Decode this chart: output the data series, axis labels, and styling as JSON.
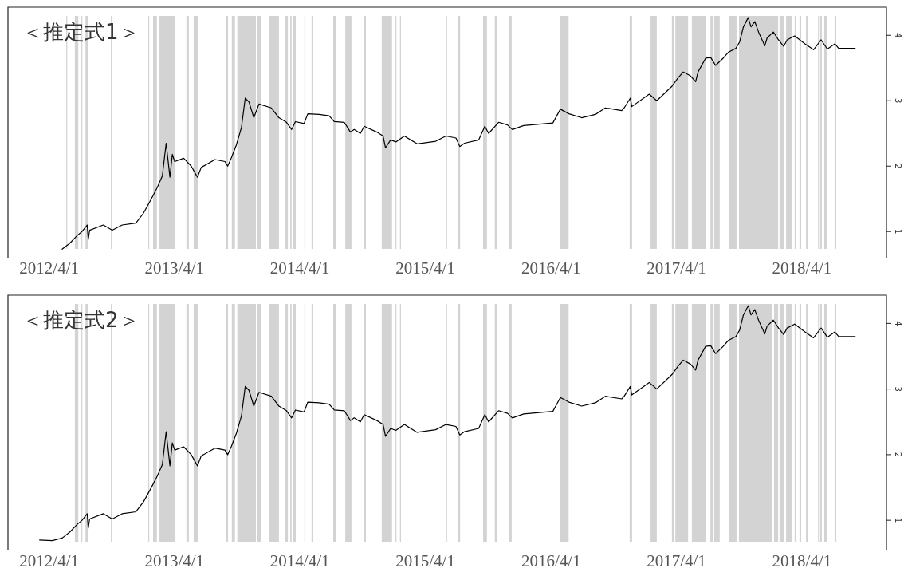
{
  "chart_data": [
    {
      "type": "line",
      "title": "＜推定式1＞",
      "xlim": [
        "2011-12-03",
        "2018-12-03"
      ],
      "xticks": [
        {
          "value": "2012-04-01",
          "label": "2012/4/1"
        },
        {
          "value": "2013-04-01",
          "label": "2013/4/1"
        },
        {
          "value": "2014-04-01",
          "label": "2014/4/1"
        },
        {
          "value": "2015-04-01",
          "label": "2015/4/1"
        },
        {
          "value": "2016-04-01",
          "label": "2016/4/1"
        },
        {
          "value": "2017-04-01",
          "label": "2017/4/1"
        },
        {
          "value": "2018-04-01",
          "label": "2018/4/1"
        }
      ],
      "ylim": [
        0.6,
        4.43
      ],
      "yticks": [
        1,
        2,
        3,
        4
      ],
      "series": [
        {
          "color": "#000000",
          "x": [
            "2012-05-09",
            "2012-05-31",
            "2012-06-22",
            "2012-07-06",
            "2012-07-21",
            "2012-07-24",
            "2012-07-28",
            "2012-09-06",
            "2012-10-02",
            "2012-10-31",
            "2012-12-10",
            "2013-01-01",
            "2013-01-23",
            "2013-02-10",
            "2013-02-25",
            "2013-03-08",
            "2013-03-19",
            "2013-03-26",
            "2013-04-02",
            "2013-04-28",
            "2013-05-20",
            "2013-06-07",
            "2013-06-18",
            "2013-07-28",
            "2013-08-26",
            "2013-09-03",
            "2013-09-14",
            "2013-09-28",
            "2013-10-13",
            "2013-10-24",
            "2013-11-04",
            "2013-11-18",
            "2013-12-03",
            "2014-01-08",
            "2014-01-30",
            "2014-02-21",
            "2014-03-08",
            "2014-03-19",
            "2014-04-13",
            "2014-04-24",
            "2014-05-27",
            "2014-06-25",
            "2014-07-10",
            "2014-08-08",
            "2014-08-26",
            "2014-09-06",
            "2014-09-24",
            "2014-10-05",
            "2014-11-11",
            "2014-11-29",
            "2014-12-06",
            "2014-12-21",
            "2015-01-05",
            "2015-01-30",
            "2015-03-08",
            "2015-05-01",
            "2015-05-31",
            "2015-06-29",
            "2015-07-10",
            "2015-07-24",
            "2015-09-03",
            "2015-09-21",
            "2015-10-02",
            "2015-10-31",
            "2015-11-26",
            "2015-12-10",
            "2016-01-12",
            "2016-04-06",
            "2016-04-28",
            "2016-05-23",
            "2016-06-29",
            "2016-08-08",
            "2016-09-06",
            "2016-10-24",
            "2016-10-31",
            "2016-11-18",
            "2016-11-22",
            "2017-01-12",
            "2017-02-03",
            "2017-03-19",
            "2017-04-06",
            "2017-04-21",
            "2017-05-12",
            "2017-05-27",
            "2017-06-03",
            "2017-06-25",
            "2017-07-10",
            "2017-07-24",
            "2017-08-15",
            "2017-08-30",
            "2017-09-21",
            "2017-10-02",
            "2017-10-13",
            "2017-10-27",
            "2017-11-04",
            "2017-11-15",
            "2017-11-26",
            "2017-12-14",
            "2017-12-21",
            "2018-01-08",
            "2018-01-23",
            "2018-02-07",
            "2018-02-17",
            "2018-03-11",
            "2018-04-10",
            "2018-05-05",
            "2018-05-27",
            "2018-06-14",
            "2018-07-06",
            "2018-07-17",
            "2018-09-03"
          ],
          "values": [
            0.73,
            0.82,
            0.94,
            1.0,
            1.1,
            0.88,
            1.02,
            1.1,
            1.02,
            1.1,
            1.13,
            1.28,
            1.49,
            1.67,
            1.85,
            2.35,
            1.83,
            2.18,
            2.07,
            2.12,
            2.0,
            1.83,
            1.98,
            2.1,
            2.07,
            2.0,
            2.13,
            2.32,
            2.59,
            3.04,
            2.98,
            2.74,
            2.95,
            2.89,
            2.74,
            2.67,
            2.56,
            2.68,
            2.65,
            2.8,
            2.79,
            2.77,
            2.68,
            2.67,
            2.52,
            2.56,
            2.5,
            2.61,
            2.52,
            2.46,
            2.28,
            2.4,
            2.37,
            2.46,
            2.34,
            2.38,
            2.46,
            2.43,
            2.3,
            2.35,
            2.4,
            2.61,
            2.5,
            2.67,
            2.63,
            2.56,
            2.62,
            2.66,
            2.87,
            2.8,
            2.74,
            2.79,
            2.89,
            2.85,
            2.89,
            3.04,
            2.91,
            3.1,
            3.0,
            3.22,
            3.35,
            3.44,
            3.38,
            3.29,
            3.44,
            3.65,
            3.66,
            3.54,
            3.65,
            3.74,
            3.8,
            3.9,
            4.13,
            4.27,
            4.13,
            4.21,
            4.05,
            3.84,
            3.96,
            4.05,
            3.93,
            3.83,
            3.93,
            3.99,
            3.87,
            3.78,
            3.93,
            3.79,
            3.87,
            3.8,
            3.8
          ]
        }
      ],
      "bands": [
        {
          "axis": "x",
          "from": "2012-05-21",
          "to": "2012-05-23",
          "color": "#d3d3d3"
        },
        {
          "axis": "x",
          "from": "2012-06-15",
          "to": "2012-06-25",
          "color": "#d3d3d3"
        },
        {
          "axis": "x",
          "from": "2012-07-04",
          "to": "2012-07-06",
          "color": "#d3d3d3"
        },
        {
          "axis": "x",
          "from": "2012-07-16",
          "to": "2012-07-23",
          "color": "#d3d3d3"
        },
        {
          "axis": "x",
          "from": "2012-09-28",
          "to": "2012-09-30",
          "color": "#d3d3d3"
        },
        {
          "axis": "x",
          "from": "2013-01-15",
          "to": "2013-01-17",
          "color": "#d3d3d3"
        },
        {
          "axis": "x",
          "from": "2013-01-29",
          "to": "2013-02-09",
          "color": "#d3d3d3"
        },
        {
          "axis": "x",
          "from": "2013-02-16",
          "to": "2013-04-04",
          "color": "#d3d3d3"
        },
        {
          "axis": "x",
          "from": "2013-05-06",
          "to": "2013-05-13",
          "color": "#d3d3d3"
        },
        {
          "axis": "x",
          "from": "2013-05-27",
          "to": "2013-06-10",
          "color": "#d3d3d3"
        },
        {
          "axis": "x",
          "from": "2013-08-30",
          "to": "2013-09-04",
          "color": "#d3d3d3"
        },
        {
          "axis": "x",
          "from": "2013-09-15",
          "to": "2013-09-24",
          "color": "#d3d3d3"
        },
        {
          "axis": "x",
          "from": "2013-10-01",
          "to": "2013-11-24",
          "color": "#d3d3d3"
        },
        {
          "axis": "x",
          "from": "2013-11-28",
          "to": "2013-12-08",
          "color": "#d3d3d3"
        },
        {
          "axis": "x",
          "from": "2014-01-02",
          "to": "2014-01-30",
          "color": "#d3d3d3"
        },
        {
          "axis": "x",
          "from": "2014-02-18",
          "to": "2014-02-25",
          "color": "#d3d3d3"
        },
        {
          "axis": "x",
          "from": "2014-03-04",
          "to": "2014-03-08",
          "color": "#d3d3d3"
        },
        {
          "axis": "x",
          "from": "2014-03-13",
          "to": "2014-03-20",
          "color": "#d3d3d3"
        },
        {
          "axis": "x",
          "from": "2014-04-14",
          "to": "2014-04-16",
          "color": "#d3d3d3"
        },
        {
          "axis": "x",
          "from": "2014-05-05",
          "to": "2014-05-10",
          "color": "#d3d3d3"
        },
        {
          "axis": "x",
          "from": "2014-07-07",
          "to": "2014-07-14",
          "color": "#d3d3d3"
        },
        {
          "axis": "x",
          "from": "2014-08-11",
          "to": "2014-08-29",
          "color": "#d3d3d3"
        },
        {
          "axis": "x",
          "from": "2014-10-05",
          "to": "2014-10-10",
          "color": "#d3d3d3"
        },
        {
          "axis": "x",
          "from": "2014-11-25",
          "to": "2014-12-25",
          "color": "#d3d3d3"
        },
        {
          "axis": "x",
          "from": "2015-01-04",
          "to": "2015-01-06",
          "color": "#d3d3d3"
        },
        {
          "axis": "x",
          "from": "2015-01-17",
          "to": "2015-01-20",
          "color": "#d3d3d3"
        },
        {
          "axis": "x",
          "from": "2015-05-30",
          "to": "2015-06-03",
          "color": "#d3d3d3"
        },
        {
          "axis": "x",
          "from": "2015-07-06",
          "to": "2015-07-11",
          "color": "#d3d3d3"
        },
        {
          "axis": "x",
          "from": "2015-09-16",
          "to": "2015-09-27",
          "color": "#d3d3d3"
        },
        {
          "axis": "x",
          "from": "2015-10-20",
          "to": "2015-10-27",
          "color": "#d3d3d3"
        },
        {
          "axis": "x",
          "from": "2015-12-01",
          "to": "2015-12-08",
          "color": "#d3d3d3"
        },
        {
          "axis": "x",
          "from": "2016-04-26",
          "to": "2016-05-22",
          "color": "#d3d3d3"
        },
        {
          "axis": "x",
          "from": "2016-11-16",
          "to": "2016-11-23",
          "color": "#d3d3d3"
        },
        {
          "axis": "x",
          "from": "2017-01-16",
          "to": "2017-02-03",
          "color": "#d3d3d3"
        },
        {
          "axis": "x",
          "from": "2017-03-19",
          "to": "2017-03-24",
          "color": "#d3d3d3"
        },
        {
          "axis": "x",
          "from": "2017-03-29",
          "to": "2017-05-05",
          "color": "#d3d3d3"
        },
        {
          "axis": "x",
          "from": "2017-05-16",
          "to": "2017-06-25",
          "color": "#d3d3d3"
        },
        {
          "axis": "x",
          "from": "2017-07-09",
          "to": "2017-07-16",
          "color": "#d3d3d3"
        },
        {
          "axis": "x",
          "from": "2017-07-20",
          "to": "2017-08-05",
          "color": "#d3d3d3"
        },
        {
          "axis": "x",
          "from": "2017-08-31",
          "to": "2017-09-23",
          "color": "#d3d3d3"
        },
        {
          "axis": "x",
          "from": "2017-09-30",
          "to": "2018-01-22",
          "color": "#d3d3d3"
        },
        {
          "axis": "x",
          "from": "2018-01-26",
          "to": "2018-02-07",
          "color": "#d3d3d3"
        },
        {
          "axis": "x",
          "from": "2018-02-14",
          "to": "2018-03-02",
          "color": "#d3d3d3"
        },
        {
          "axis": "x",
          "from": "2018-03-11",
          "to": "2018-03-16",
          "color": "#d3d3d3"
        },
        {
          "axis": "x",
          "from": "2018-03-25",
          "to": "2018-03-30",
          "color": "#d3d3d3"
        },
        {
          "axis": "x",
          "from": "2018-04-13",
          "to": "2018-04-18",
          "color": "#d3d3d3"
        },
        {
          "axis": "x",
          "from": "2018-05-18",
          "to": "2018-05-22",
          "color": "#d3d3d3"
        },
        {
          "axis": "x",
          "from": "2018-05-24",
          "to": "2018-05-29",
          "color": "#d3d3d3"
        },
        {
          "axis": "x",
          "from": "2018-06-05",
          "to": "2018-06-12",
          "color": "#d3d3d3"
        },
        {
          "axis": "x",
          "from": "2018-07-05",
          "to": "2018-07-10",
          "color": "#d3d3d3"
        }
      ]
    },
    {
      "type": "line",
      "title": "＜推定式2＞",
      "xlim": [
        "2011-12-03",
        "2018-12-03"
      ],
      "xticks": [
        {
          "value": "2012-04-01",
          "label": "2012/4/1"
        },
        {
          "value": "2013-04-01",
          "label": "2013/4/1"
        },
        {
          "value": "2014-04-01",
          "label": "2014/4/1"
        },
        {
          "value": "2015-04-01",
          "label": "2015/4/1"
        },
        {
          "value": "2016-04-01",
          "label": "2016/4/1"
        },
        {
          "value": "2017-04-01",
          "label": "2017/4/1"
        },
        {
          "value": "2018-04-01",
          "label": "2018/4/1"
        }
      ],
      "ylim": [
        0.54,
        4.43
      ],
      "yticks": [
        1,
        2,
        3,
        4
      ],
      "series": [
        {
          "color": "#000000",
          "x": [
            "2012-03-04",
            "2012-04-10",
            "2012-05-09",
            "2012-05-31",
            "2012-06-22",
            "2012-07-06",
            "2012-07-21",
            "2012-07-24",
            "2012-07-28",
            "2012-09-06",
            "2012-10-02",
            "2012-10-31",
            "2012-12-10",
            "2013-01-01",
            "2013-01-23",
            "2013-02-10",
            "2013-02-25",
            "2013-03-08",
            "2013-03-19",
            "2013-03-26",
            "2013-04-02",
            "2013-04-28",
            "2013-05-20",
            "2013-06-07",
            "2013-06-18",
            "2013-07-28",
            "2013-08-26",
            "2013-09-03",
            "2013-09-14",
            "2013-09-28",
            "2013-10-13",
            "2013-10-24",
            "2013-11-04",
            "2013-11-18",
            "2013-12-03",
            "2014-01-08",
            "2014-01-30",
            "2014-02-21",
            "2014-03-08",
            "2014-03-19",
            "2014-04-13",
            "2014-04-24",
            "2014-05-27",
            "2014-06-25",
            "2014-07-10",
            "2014-08-08",
            "2014-08-26",
            "2014-09-06",
            "2014-09-24",
            "2014-10-05",
            "2014-11-11",
            "2014-11-29",
            "2014-12-06",
            "2014-12-21",
            "2015-01-05",
            "2015-01-30",
            "2015-03-08",
            "2015-05-01",
            "2015-05-31",
            "2015-06-29",
            "2015-07-10",
            "2015-07-24",
            "2015-09-03",
            "2015-09-21",
            "2015-10-02",
            "2015-10-31",
            "2015-11-26",
            "2015-12-10",
            "2016-01-12",
            "2016-04-06",
            "2016-04-28",
            "2016-05-23",
            "2016-06-29",
            "2016-08-08",
            "2016-09-06",
            "2016-10-24",
            "2016-10-31",
            "2016-11-18",
            "2016-11-22",
            "2017-01-12",
            "2017-02-03",
            "2017-03-19",
            "2017-04-06",
            "2017-04-21",
            "2017-05-12",
            "2017-05-27",
            "2017-06-03",
            "2017-06-25",
            "2017-07-10",
            "2017-07-24",
            "2017-08-15",
            "2017-08-30",
            "2017-09-21",
            "2017-10-02",
            "2017-10-13",
            "2017-10-27",
            "2017-11-04",
            "2017-11-15",
            "2017-11-26",
            "2017-12-14",
            "2017-12-21",
            "2018-01-08",
            "2018-01-23",
            "2018-02-07",
            "2018-02-17",
            "2018-03-11",
            "2018-04-10",
            "2018-05-05",
            "2018-05-27",
            "2018-06-14",
            "2018-07-06",
            "2018-07-17",
            "2018-09-03"
          ],
          "values": [
            0.7,
            0.69,
            0.73,
            0.82,
            0.94,
            1.0,
            1.1,
            0.88,
            1.02,
            1.1,
            1.02,
            1.1,
            1.13,
            1.28,
            1.49,
            1.67,
            1.85,
            2.35,
            1.83,
            2.18,
            2.07,
            2.12,
            2.0,
            1.83,
            1.98,
            2.1,
            2.07,
            2.0,
            2.13,
            2.32,
            2.59,
            3.04,
            2.98,
            2.74,
            2.95,
            2.89,
            2.74,
            2.67,
            2.56,
            2.68,
            2.65,
            2.8,
            2.79,
            2.77,
            2.68,
            2.67,
            2.52,
            2.56,
            2.5,
            2.61,
            2.52,
            2.46,
            2.28,
            2.4,
            2.37,
            2.46,
            2.34,
            2.38,
            2.46,
            2.43,
            2.3,
            2.35,
            2.4,
            2.61,
            2.5,
            2.67,
            2.63,
            2.56,
            2.62,
            2.66,
            2.87,
            2.8,
            2.74,
            2.79,
            2.89,
            2.85,
            2.89,
            3.04,
            2.91,
            3.1,
            3.0,
            3.22,
            3.35,
            3.44,
            3.38,
            3.29,
            3.44,
            3.65,
            3.66,
            3.54,
            3.65,
            3.74,
            3.8,
            3.9,
            4.13,
            4.27,
            4.13,
            4.21,
            4.05,
            3.84,
            3.96,
            4.05,
            3.93,
            3.83,
            3.93,
            3.99,
            3.87,
            3.78,
            3.93,
            3.79,
            3.87,
            3.8,
            3.8
          ]
        }
      ],
      "bands": [
        {
          "axis": "x",
          "from": "2012-06-15",
          "to": "2012-06-25",
          "color": "#d3d3d3"
        },
        {
          "axis": "x",
          "from": "2012-07-04",
          "to": "2012-07-06",
          "color": "#d3d3d3"
        },
        {
          "axis": "x",
          "from": "2012-07-16",
          "to": "2012-07-23",
          "color": "#d3d3d3"
        },
        {
          "axis": "x",
          "from": "2012-09-28",
          "to": "2012-09-30",
          "color": "#d3d3d3"
        },
        {
          "axis": "x",
          "from": "2013-01-15",
          "to": "2013-01-17",
          "color": "#d3d3d3"
        },
        {
          "axis": "x",
          "from": "2013-01-29",
          "to": "2013-02-09",
          "color": "#d3d3d3"
        },
        {
          "axis": "x",
          "from": "2013-02-16",
          "to": "2013-04-04",
          "color": "#d3d3d3"
        },
        {
          "axis": "x",
          "from": "2013-05-06",
          "to": "2013-05-13",
          "color": "#d3d3d3"
        },
        {
          "axis": "x",
          "from": "2013-05-27",
          "to": "2013-06-10",
          "color": "#d3d3d3"
        },
        {
          "axis": "x",
          "from": "2013-08-30",
          "to": "2013-09-04",
          "color": "#d3d3d3"
        },
        {
          "axis": "x",
          "from": "2013-09-15",
          "to": "2013-09-24",
          "color": "#d3d3d3"
        },
        {
          "axis": "x",
          "from": "2013-10-01",
          "to": "2013-11-24",
          "color": "#d3d3d3"
        },
        {
          "axis": "x",
          "from": "2013-11-28",
          "to": "2013-12-08",
          "color": "#d3d3d3"
        },
        {
          "axis": "x",
          "from": "2014-01-02",
          "to": "2014-01-30",
          "color": "#d3d3d3"
        },
        {
          "axis": "x",
          "from": "2014-02-18",
          "to": "2014-02-25",
          "color": "#d3d3d3"
        },
        {
          "axis": "x",
          "from": "2014-03-04",
          "to": "2014-03-08",
          "color": "#d3d3d3"
        },
        {
          "axis": "x",
          "from": "2014-03-13",
          "to": "2014-03-20",
          "color": "#d3d3d3"
        },
        {
          "axis": "x",
          "from": "2014-04-14",
          "to": "2014-04-16",
          "color": "#d3d3d3"
        },
        {
          "axis": "x",
          "from": "2014-05-05",
          "to": "2014-05-10",
          "color": "#d3d3d3"
        },
        {
          "axis": "x",
          "from": "2014-07-07",
          "to": "2014-07-14",
          "color": "#d3d3d3"
        },
        {
          "axis": "x",
          "from": "2014-08-11",
          "to": "2014-08-29",
          "color": "#d3d3d3"
        },
        {
          "axis": "x",
          "from": "2014-10-05",
          "to": "2014-10-10",
          "color": "#d3d3d3"
        },
        {
          "axis": "x",
          "from": "2014-11-25",
          "to": "2014-12-25",
          "color": "#d3d3d3"
        },
        {
          "axis": "x",
          "from": "2015-01-04",
          "to": "2015-01-06",
          "color": "#d3d3d3"
        },
        {
          "axis": "x",
          "from": "2015-01-17",
          "to": "2015-01-20",
          "color": "#d3d3d3"
        },
        {
          "axis": "x",
          "from": "2015-05-30",
          "to": "2015-06-03",
          "color": "#d3d3d3"
        },
        {
          "axis": "x",
          "from": "2015-07-06",
          "to": "2015-07-11",
          "color": "#d3d3d3"
        },
        {
          "axis": "x",
          "from": "2015-09-16",
          "to": "2015-09-27",
          "color": "#d3d3d3"
        },
        {
          "axis": "x",
          "from": "2015-10-20",
          "to": "2015-10-27",
          "color": "#d3d3d3"
        },
        {
          "axis": "x",
          "from": "2015-12-01",
          "to": "2015-12-08",
          "color": "#d3d3d3"
        },
        {
          "axis": "x",
          "from": "2016-04-26",
          "to": "2016-05-22",
          "color": "#d3d3d3"
        },
        {
          "axis": "x",
          "from": "2016-11-16",
          "to": "2016-11-23",
          "color": "#d3d3d3"
        },
        {
          "axis": "x",
          "from": "2017-01-16",
          "to": "2017-02-03",
          "color": "#d3d3d3"
        },
        {
          "axis": "x",
          "from": "2017-03-19",
          "to": "2017-03-24",
          "color": "#d3d3d3"
        },
        {
          "axis": "x",
          "from": "2017-03-29",
          "to": "2017-05-05",
          "color": "#d3d3d3"
        },
        {
          "axis": "x",
          "from": "2017-05-16",
          "to": "2017-06-25",
          "color": "#d3d3d3"
        },
        {
          "axis": "x",
          "from": "2017-07-09",
          "to": "2017-07-16",
          "color": "#d3d3d3"
        },
        {
          "axis": "x",
          "from": "2017-07-20",
          "to": "2017-08-05",
          "color": "#d3d3d3"
        },
        {
          "axis": "x",
          "from": "2017-08-31",
          "to": "2017-09-23",
          "color": "#d3d3d3"
        },
        {
          "axis": "x",
          "from": "2017-09-30",
          "to": "2018-01-05",
          "color": "#d3d3d3"
        },
        {
          "axis": "x",
          "from": "2018-01-10",
          "to": "2018-01-22",
          "color": "#d3d3d3"
        },
        {
          "axis": "x",
          "from": "2018-01-26",
          "to": "2018-02-07",
          "color": "#d3d3d3"
        },
        {
          "axis": "x",
          "from": "2018-02-14",
          "to": "2018-03-02",
          "color": "#d3d3d3"
        },
        {
          "axis": "x",
          "from": "2018-03-11",
          "to": "2018-03-16",
          "color": "#d3d3d3"
        },
        {
          "axis": "x",
          "from": "2018-03-25",
          "to": "2018-03-30",
          "color": "#d3d3d3"
        },
        {
          "axis": "x",
          "from": "2018-04-13",
          "to": "2018-04-18",
          "color": "#d3d3d3"
        },
        {
          "axis": "x",
          "from": "2018-05-18",
          "to": "2018-05-22",
          "color": "#d3d3d3"
        },
        {
          "axis": "x",
          "from": "2018-05-24",
          "to": "2018-05-29",
          "color": "#d3d3d3"
        },
        {
          "axis": "x",
          "from": "2018-06-05",
          "to": "2018-06-12",
          "color": "#d3d3d3"
        },
        {
          "axis": "x",
          "from": "2018-07-05",
          "to": "2018-07-10",
          "color": "#d3d3d3"
        }
      ]
    }
  ]
}
